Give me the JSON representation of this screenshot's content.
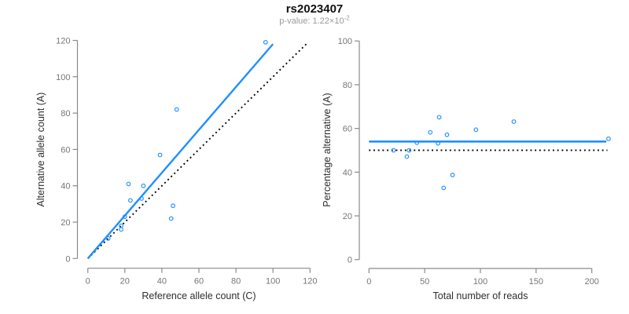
{
  "header": {
    "title": "rs2023407",
    "pvalue_prefix": "p-value: 1.22×10",
    "pvalue_exponent": "-2"
  },
  "style": {
    "accent": "#1E90FF",
    "identity_color": "#000000",
    "axis_color": "#8a8a8a",
    "tick_label_color": "#767676",
    "axis_title_color": "#2e2e2e",
    "subtitle_color": "#9a9a9a"
  },
  "chart_data": [
    {
      "type": "scatter",
      "name": "allele-counts",
      "xlabel": "Reference allele count (C)",
      "ylabel": "Alternative allele count (A)",
      "xlim": [
        0,
        120
      ],
      "ylim": [
        0,
        120
      ],
      "xticks": [
        0,
        20,
        40,
        60,
        80,
        100,
        120
      ],
      "yticks": [
        0,
        20,
        40,
        60,
        80,
        100,
        120
      ],
      "grid": false,
      "points": [
        [
          11,
          11
        ],
        [
          18,
          16
        ],
        [
          18,
          18
        ],
        [
          20,
          23
        ],
        [
          23,
          32
        ],
        [
          29,
          33
        ],
        [
          30,
          40
        ],
        [
          22,
          41
        ],
        [
          45,
          22
        ],
        [
          46,
          29
        ],
        [
          39,
          57
        ],
        [
          48,
          82
        ],
        [
          96,
          119
        ]
      ],
      "fit_line": {
        "x1": 0,
        "y1": 0,
        "x2": 100,
        "y2": 118,
        "style": "solid"
      },
      "identity_line": {
        "x1": 0,
        "y1": 0,
        "x2": 118,
        "y2": 118,
        "style": "dotted"
      }
    },
    {
      "type": "scatter",
      "name": "percentage-vs-coverage",
      "xlabel": "Total number of reads",
      "ylabel": "Percentage alternative (A)",
      "xlim": [
        0,
        215
      ],
      "ylim": [
        0,
        100
      ],
      "xticks": [
        0,
        50,
        100,
        150,
        200
      ],
      "yticks": [
        0,
        20,
        40,
        60,
        80,
        100
      ],
      "grid": false,
      "points": [
        [
          22,
          50
        ],
        [
          34,
          47.1
        ],
        [
          36,
          50
        ],
        [
          43,
          53.5
        ],
        [
          55,
          58.2
        ],
        [
          62,
          53.2
        ],
        [
          70,
          57.1
        ],
        [
          63,
          65.1
        ],
        [
          67,
          32.8
        ],
        [
          75,
          38.7
        ],
        [
          96,
          59.4
        ],
        [
          130,
          63.1
        ],
        [
          215,
          55.3
        ]
      ],
      "mean_line": {
        "y": 54,
        "x1": 0,
        "x2": 213,
        "style": "solid"
      },
      "reference_line": {
        "y": 50,
        "x1": 0,
        "x2": 214,
        "style": "dotted"
      }
    }
  ]
}
